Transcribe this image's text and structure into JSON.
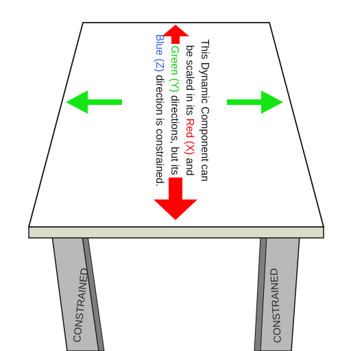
{
  "scene": "dynamic-component-table",
  "colors": {
    "tabletop": "#ffffff",
    "edge": "#dcdccb",
    "outline": "#111111",
    "leg": "#b7b7b7",
    "leg_shadow": "#8a8a8a",
    "red": "#ff0000",
    "green": "#13e613",
    "blue": "#2f5fe6"
  },
  "message": {
    "line1": "This Dynamic Component can",
    "line2_a": "be scaled in its ",
    "red_word": "Red (X)",
    "line2_b": " and",
    "green_word": "Green (Y)",
    "line3_b": " directions, but its",
    "blue_word": "Blue (Z)",
    "line4_b": " direction is constrained."
  },
  "legs": {
    "left_label": "CONSTRAINED",
    "right_label": "CONSTRAINED"
  },
  "arrows": [
    {
      "name": "red-arrow-up",
      "color": "red"
    },
    {
      "name": "red-arrow-down",
      "color": "red"
    },
    {
      "name": "green-arrow-left",
      "color": "green"
    },
    {
      "name": "green-arrow-right",
      "color": "green"
    }
  ]
}
